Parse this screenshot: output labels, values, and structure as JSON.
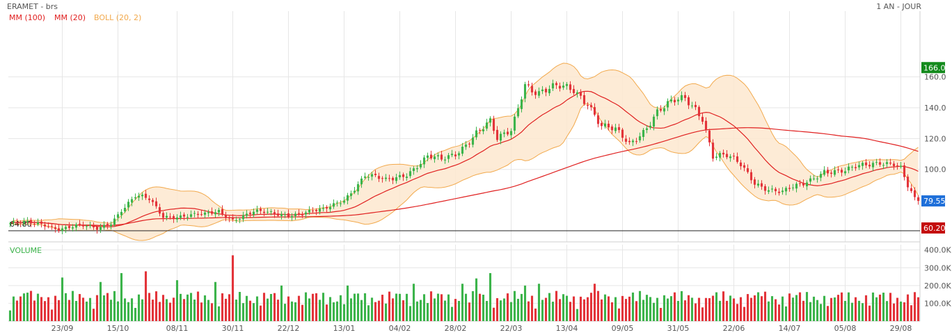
{
  "header": {
    "title": "ERAMET - brs",
    "period": "1 AN - JOUR"
  },
  "legend": {
    "ma100": "MM (100)",
    "ma20": "MM (20)",
    "boll": "BOLL (20, 2)",
    "volume": "VOLUME"
  },
  "colors": {
    "up": "#3cb44b",
    "down": "#e3343a",
    "ma": "#e02020",
    "boll_line": "#f2a94c",
    "boll_fill": "#fde8cf",
    "grid": "#e6e6e6",
    "last_badge": "#1e6fd9",
    "high_badge": "#138a1c",
    "low_badge": "#c40b0b"
  },
  "badges": {
    "high": "166.0",
    "last": "79.55",
    "low": "60.20"
  },
  "support_label": "64.80",
  "chart_data": {
    "type": "candlestick",
    "title": "ERAMET - brs",
    "price_axis": {
      "ticks": [
        160.0,
        140.0,
        120.0,
        100.0
      ],
      "tick_labels": [
        "160.0",
        "140.0",
        "120.0",
        "100.0"
      ],
      "range": [
        53,
        190
      ]
    },
    "volume_axis": {
      "ticks": [
        400000,
        300000,
        200000,
        100000
      ],
      "tick_labels": [
        "400.0K",
        "300.0K",
        "200.0K",
        "100.0K"
      ],
      "range": [
        0,
        430000
      ]
    },
    "x_labels": [
      {
        "label": "23/09",
        "index": 15
      },
      {
        "label": "15/10",
        "index": 31
      },
      {
        "label": "08/11",
        "index": 48
      },
      {
        "label": "30/11",
        "index": 64
      },
      {
        "label": "22/12",
        "index": 80
      },
      {
        "label": "13/01",
        "index": 96
      },
      {
        "label": "04/02",
        "index": 112
      },
      {
        "label": "28/02",
        "index": 128
      },
      {
        "label": "22/03",
        "index": 144
      },
      {
        "label": "13/04",
        "index": 160
      },
      {
        "label": "09/05",
        "index": 176
      },
      {
        "label": "31/05",
        "index": 192
      },
      {
        "label": "22/06",
        "index": 208
      },
      {
        "label": "14/07",
        "index": 224
      },
      {
        "label": "05/08",
        "index": 240
      },
      {
        "label": "29/08",
        "index": 256
      }
    ],
    "price_path": [
      [
        0,
        65.0
      ],
      [
        10,
        64.5
      ],
      [
        14,
        62.0
      ],
      [
        20,
        63.0
      ],
      [
        25,
        61.5
      ],
      [
        29,
        66.0
      ],
      [
        32,
        74.0
      ],
      [
        36,
        82.0
      ],
      [
        40,
        80.0
      ],
      [
        44,
        70.0
      ],
      [
        50,
        70.0
      ],
      [
        56,
        70.0
      ],
      [
        60,
        73.0
      ],
      [
        64,
        68.0
      ],
      [
        70,
        72.0
      ],
      [
        76,
        71.0
      ],
      [
        82,
        71.5
      ],
      [
        90,
        73.0
      ],
      [
        96,
        81.0
      ],
      [
        102,
        96.0
      ],
      [
        108,
        92.0
      ],
      [
        114,
        98.0
      ],
      [
        120,
        108.0
      ],
      [
        124,
        105.0
      ],
      [
        128,
        110.0
      ],
      [
        134,
        125.0
      ],
      [
        138,
        130.0
      ],
      [
        140,
        118.0
      ],
      [
        144,
        125.0
      ],
      [
        148,
        157.0
      ],
      [
        152,
        150.0
      ],
      [
        158,
        152.0
      ],
      [
        162,
        152.0
      ],
      [
        166,
        145.0
      ],
      [
        170,
        128.0
      ],
      [
        174,
        124.0
      ],
      [
        178,
        116.0
      ],
      [
        182,
        126.0
      ],
      [
        186,
        138.0
      ],
      [
        190,
        142.0
      ],
      [
        194,
        145.0
      ],
      [
        197,
        140.0
      ],
      [
        199,
        135.0
      ],
      [
        202,
        110.0
      ],
      [
        206,
        108.0
      ],
      [
        210,
        102.0
      ],
      [
        214,
        92.0
      ],
      [
        218,
        88.0
      ],
      [
        222,
        85.0
      ],
      [
        228,
        90.0
      ],
      [
        234,
        100.0
      ],
      [
        240,
        98.0
      ],
      [
        246,
        103.0
      ],
      [
        250,
        106.0
      ],
      [
        254,
        104.0
      ],
      [
        256,
        100.0
      ],
      [
        258,
        88.0
      ],
      [
        260,
        79.55
      ]
    ],
    "volume_spikes": [
      [
        5,
        160000
      ],
      [
        15,
        245000
      ],
      [
        26,
        220000
      ],
      [
        32,
        270000
      ],
      [
        39,
        280000
      ],
      [
        48,
        230000
      ],
      [
        59,
        220000
      ],
      [
        64,
        370000
      ],
      [
        78,
        200000
      ],
      [
        97,
        200000
      ],
      [
        116,
        210000
      ],
      [
        130,
        210000
      ],
      [
        134,
        240000
      ],
      [
        138,
        270000
      ],
      [
        148,
        200000
      ],
      [
        152,
        210000
      ],
      [
        168,
        210000
      ],
      [
        200,
        130000
      ],
      [
        216,
        140000
      ],
      [
        236,
        130000
      ],
      [
        258,
        150000
      ]
    ]
  }
}
